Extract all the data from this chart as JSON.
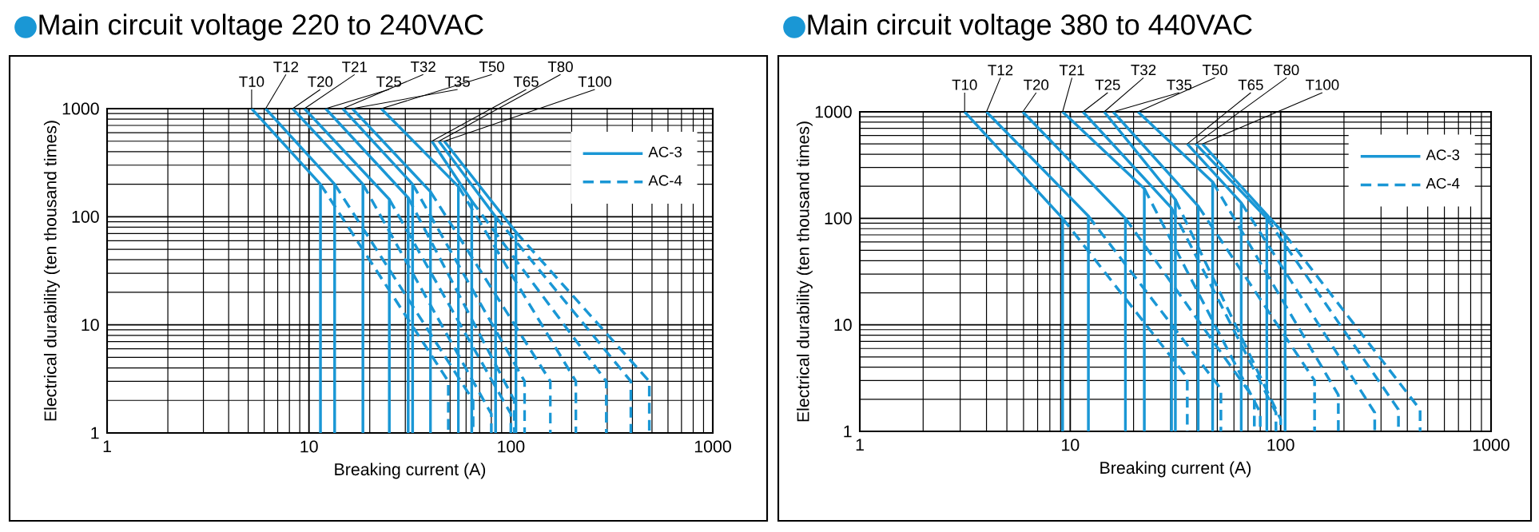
{
  "chart_data": [
    {
      "type": "line",
      "title": "Main circuit voltage 220 to 240VAC",
      "xlabel": "Breaking current (A)",
      "ylabel": "Electrical durability (ten thousand times)",
      "log": "xy",
      "grid": true,
      "legend": "top right",
      "xlim": [
        1,
        1000
      ],
      "ylim": [
        1,
        1000
      ],
      "xticks": [
        1,
        10,
        100,
        1000
      ],
      "yticks": [
        1,
        10,
        100,
        1000
      ],
      "series": [
        {
          "name": "AC-3",
          "color": "#1a97d5",
          "line_style": "solid",
          "x": [
            5.2,
            11.4,
            11.4
          ],
          "values": [
            1000,
            200,
            1
          ]
        },
        {
          "color": "#1a97d5",
          "line_style": "solid",
          "x": [
            6.1,
            13.4,
            13.4
          ],
          "values": [
            1000,
            200,
            1
          ]
        },
        {
          "color": "#1a97d5",
          "line_style": "solid",
          "x": [
            8.3,
            18.5,
            18.5
          ],
          "values": [
            1000,
            200,
            1
          ]
        },
        {
          "color": "#1a97d5",
          "line_style": "solid",
          "x": [
            9.5,
            25,
            25
          ],
          "values": [
            1000,
            145,
            1
          ]
        },
        {
          "color": "#1a97d5",
          "line_style": "solid",
          "x": [
            12.1,
            31,
            31
          ],
          "values": [
            1000,
            150,
            1
          ]
        },
        {
          "color": "#1a97d5",
          "line_style": "solid",
          "x": [
            14.7,
            32.6,
            32.6
          ],
          "values": [
            1000,
            200,
            1
          ]
        },
        {
          "color": "#1a97d5",
          "line_style": "solid",
          "x": [
            16.4,
            40,
            40
          ],
          "values": [
            1000,
            170,
            1
          ]
        },
        {
          "color": "#1a97d5",
          "line_style": "solid",
          "x": [
            22.8,
            55,
            55
          ],
          "values": [
            1000,
            190,
            1
          ]
        },
        {
          "color": "#1a97d5",
          "line_style": "solid",
          "x": [
            40.6,
            64,
            64
          ],
          "values": [
            500,
            140,
            1
          ]
        },
        {
          "color": "#1a97d5",
          "line_style": "solid",
          "x": [
            44,
            84,
            84
          ],
          "values": [
            500,
            100,
            1
          ]
        },
        {
          "color": "#1a97d5",
          "line_style": "solid",
          "x": [
            46.8,
            106,
            106
          ],
          "values": [
            500,
            72,
            1
          ]
        },
        {
          "name": "AC-4",
          "color": "#1a97d5",
          "line_style": "dashed",
          "x": [
            11.4,
            49,
            49
          ],
          "values": [
            200,
            3,
            1
          ]
        },
        {
          "color": "#1a97d5",
          "line_style": "dashed",
          "x": [
            13.4,
            65,
            65
          ],
          "values": [
            200,
            2,
            1
          ]
        },
        {
          "color": "#1a97d5",
          "line_style": "dashed",
          "x": [
            18.5,
            80,
            80
          ],
          "values": [
            200,
            1.5,
            1
          ]
        },
        {
          "color": "#1a97d5",
          "line_style": "dashed",
          "x": [
            25,
            100,
            100
          ],
          "values": [
            145,
            1.5,
            1
          ]
        },
        {
          "color": "#1a97d5",
          "line_style": "dashed",
          "x": [
            31,
            104,
            104
          ],
          "values": [
            150,
            2,
            1
          ]
        },
        {
          "color": "#1a97d5",
          "line_style": "dashed",
          "x": [
            32.6,
            117,
            117
          ],
          "values": [
            200,
            3,
            1
          ]
        },
        {
          "color": "#1a97d5",
          "line_style": "dashed",
          "x": [
            40,
            157,
            157
          ],
          "values": [
            170,
            3,
            1
          ]
        },
        {
          "color": "#1a97d5",
          "line_style": "dashed",
          "x": [
            55,
            210,
            210
          ],
          "values": [
            190,
            3,
            1
          ]
        },
        {
          "color": "#1a97d5",
          "line_style": "dashed",
          "x": [
            64,
            297,
            297
          ],
          "values": [
            140,
            3,
            1
          ]
        },
        {
          "color": "#1a97d5",
          "line_style": "dashed",
          "x": [
            84,
            393,
            393
          ],
          "values": [
            100,
            3,
            1
          ]
        },
        {
          "color": "#1a97d5",
          "line_style": "dashed",
          "x": [
            106,
            485,
            485
          ],
          "values": [
            72,
            3,
            1
          ]
        }
      ],
      "annotations": [
        {
          "text": "T10",
          "x": 5.2,
          "y": 1000
        },
        {
          "text": "T12",
          "x": 6.1,
          "y": 1000
        },
        {
          "text": "T20",
          "x": 8.3,
          "y": 1000
        },
        {
          "text": "T21",
          "x": 9.5,
          "y": 1000
        },
        {
          "text": "T25",
          "x": 12.1,
          "y": 1000
        },
        {
          "text": "T32",
          "x": 14.7,
          "y": 1000
        },
        {
          "text": "T35",
          "x": 16.4,
          "y": 1000
        },
        {
          "text": "T50",
          "x": 22.8,
          "y": 1000
        },
        {
          "text": "T65",
          "x": 40.6,
          "y": 500
        },
        {
          "text": "T80",
          "x": 44,
          "y": 500
        },
        {
          "text": "T100",
          "x": 46.8,
          "y": 500
        }
      ]
    },
    {
      "type": "line",
      "title": "Main circuit voltage 380 to 440VAC",
      "xlabel": "Breaking current (A)",
      "ylabel": "Electrical durability (ten thousand times)",
      "log": "xy",
      "grid": true,
      "legend": "top right",
      "xlim": [
        1,
        1000
      ],
      "ylim": [
        1,
        1000
      ],
      "xticks": [
        1,
        10,
        100,
        1000
      ],
      "yticks": [
        1,
        10,
        100,
        1000
      ],
      "series": [
        {
          "name": "AC-3",
          "color": "#1a97d5",
          "line_style": "solid",
          "x": [
            3.15,
            9.2,
            9.2
          ],
          "values": [
            1000,
            100,
            1
          ]
        },
        {
          "color": "#1a97d5",
          "line_style": "solid",
          "x": [
            4.0,
            12.2,
            12.2
          ],
          "values": [
            1000,
            105,
            1
          ]
        },
        {
          "color": "#1a97d5",
          "line_style": "solid",
          "x": [
            5.95,
            18.3,
            18.3
          ],
          "values": [
            1000,
            100,
            1
          ]
        },
        {
          "color": "#1a97d5",
          "line_style": "solid",
          "x": [
            9.2,
            22.5,
            22.5
          ],
          "values": [
            1000,
            190,
            1
          ]
        },
        {
          "color": "#1a97d5",
          "line_style": "solid",
          "x": [
            11.5,
            30.3,
            30.3
          ],
          "values": [
            1000,
            125,
            1
          ]
        },
        {
          "color": "#1a97d5",
          "line_style": "solid",
          "x": [
            14.5,
            31.6,
            31.6
          ],
          "values": [
            1000,
            150,
            1
          ]
        },
        {
          "color": "#1a97d5",
          "line_style": "solid",
          "x": [
            16,
            40.6,
            40.6
          ],
          "values": [
            1000,
            130,
            1
          ]
        },
        {
          "color": "#1a97d5",
          "line_style": "solid",
          "x": [
            21,
            47.5,
            47.5
          ],
          "values": [
            1000,
            220,
            1
          ]
        },
        {
          "color": "#1a97d5",
          "line_style": "solid",
          "x": [
            36,
            65,
            65
          ],
          "values": [
            500,
            140,
            1
          ]
        },
        {
          "color": "#1a97d5",
          "line_style": "solid",
          "x": [
            39.5,
            86,
            86
          ],
          "values": [
            500,
            100,
            1
          ]
        },
        {
          "color": "#1a97d5",
          "line_style": "solid",
          "x": [
            42.5,
            105,
            105
          ],
          "values": [
            500,
            70,
            1
          ]
        },
        {
          "name": "AC-4",
          "color": "#1a97d5",
          "line_style": "dashed",
          "x": [
            9.2,
            36,
            36
          ],
          "values": [
            100,
            3.2,
            1
          ]
        },
        {
          "color": "#1a97d5",
          "line_style": "dashed",
          "x": [
            12.2,
            52,
            52
          ],
          "values": [
            105,
            2.5,
            1
          ]
        },
        {
          "color": "#1a97d5",
          "line_style": "dashed",
          "x": [
            18.3,
            75,
            75
          ],
          "values": [
            100,
            2,
            1
          ]
        },
        {
          "color": "#1a97d5",
          "line_style": "dashed",
          "x": [
            22.5,
            80,
            80
          ],
          "values": [
            190,
            1.5,
            1
          ]
        },
        {
          "color": "#1a97d5",
          "line_style": "dashed",
          "x": [
            30.3,
            95,
            95
          ],
          "values": [
            125,
            1.5,
            1
          ]
        },
        {
          "color": "#1a97d5",
          "line_style": "dashed",
          "x": [
            31.6,
            100,
            100
          ],
          "values": [
            150,
            1.3,
            1
          ]
        },
        {
          "color": "#1a97d5",
          "line_style": "dashed",
          "x": [
            40.6,
            145,
            145
          ],
          "values": [
            130,
            3,
            1
          ]
        },
        {
          "color": "#1a97d5",
          "line_style": "dashed",
          "x": [
            47.5,
            188,
            188
          ],
          "values": [
            220,
            2.2,
            1
          ]
        },
        {
          "color": "#1a97d5",
          "line_style": "dashed",
          "x": [
            65,
            280,
            280
          ],
          "values": [
            140,
            1.5,
            1
          ]
        },
        {
          "color": "#1a97d5",
          "line_style": "dashed",
          "x": [
            86,
            363,
            363
          ],
          "values": [
            100,
            1.6,
            1
          ]
        },
        {
          "color": "#1a97d5",
          "line_style": "dashed",
          "x": [
            105,
            460,
            460
          ],
          "values": [
            70,
            1.6,
            1
          ]
        }
      ],
      "annotations": [
        {
          "text": "T10",
          "x": 3.15,
          "y": 1000
        },
        {
          "text": "T12",
          "x": 4.0,
          "y": 1000
        },
        {
          "text": "T20",
          "x": 5.95,
          "y": 1000
        },
        {
          "text": "T21",
          "x": 9.2,
          "y": 1000
        },
        {
          "text": "T25",
          "x": 11.5,
          "y": 1000
        },
        {
          "text": "T32",
          "x": 14.5,
          "y": 1000
        },
        {
          "text": "T35",
          "x": 16,
          "y": 1000
        },
        {
          "text": "T50",
          "x": 21,
          "y": 1000
        },
        {
          "text": "T65",
          "x": 36,
          "y": 500
        },
        {
          "text": "T80",
          "x": 39.5,
          "y": 500
        },
        {
          "text": "T100",
          "x": 42.5,
          "y": 500
        }
      ]
    }
  ]
}
